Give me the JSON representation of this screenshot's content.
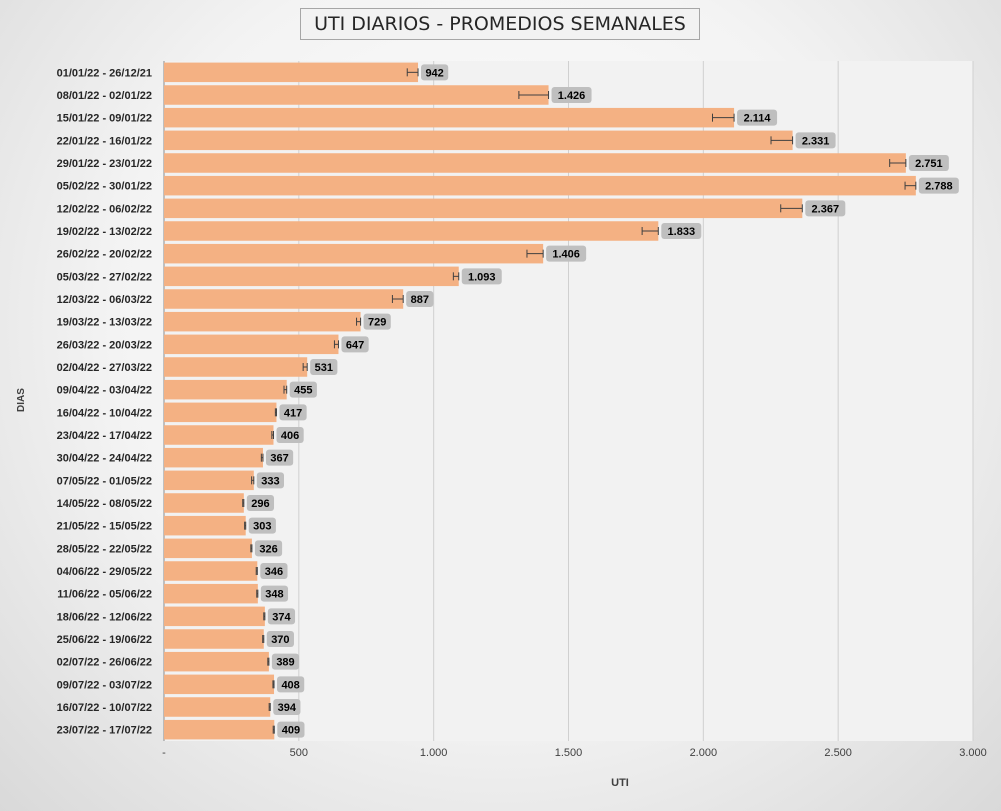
{
  "chart_data": {
    "type": "bar",
    "orientation": "horizontal",
    "title": "UTI DIARIOS - PROMEDIOS SEMANALES",
    "xlabel": "UTI",
    "ylabel": "DIAS",
    "xlim": [
      0,
      3000
    ],
    "x_ticks": [
      0,
      500,
      1000,
      1500,
      2000,
      2500,
      3000
    ],
    "x_tick_labels": [
      "-",
      "500",
      "1.000",
      "1.500",
      "2.000",
      "2.500",
      "3.000"
    ],
    "grid": "vertical",
    "legend": "none",
    "bar_color": "#f4b183",
    "label_bg_color": "#bfbfbf",
    "error_bars": true,
    "categories": [
      "01/01/22 - 26/12/21",
      "08/01/22 - 02/01/22",
      "15/01/22 - 09/01/22",
      "22/01/22 - 16/01/22",
      "29/01/22 - 23/01/22",
      "05/02/22 - 30/01/22",
      "12/02/22 - 06/02/22",
      "19/02/22 - 13/02/22",
      "26/02/22 - 20/02/22",
      "05/03/22 - 27/02/22",
      "12/03/22 - 06/03/22",
      "19/03/22 - 13/03/22",
      "26/03/22 - 20/03/22",
      "02/04/22 - 27/03/22",
      "09/04/22 - 03/04/22",
      "16/04/22 - 10/04/22",
      "23/04/22 - 17/04/22",
      "30/04/22 - 24/04/22",
      "07/05/22 - 01/05/22",
      "14/05/22 - 08/05/22",
      "21/05/22 - 15/05/22",
      "28/05/22 - 22/05/22",
      "04/06/22 - 29/05/22",
      "11/06/22 - 05/06/22",
      "18/06/22 - 12/06/22",
      "25/06/22 - 19/06/22",
      "02/07/22 - 26/06/22",
      "09/07/22 - 03/07/22",
      "16/07/22 - 10/07/22",
      "23/07/22 - 17/07/22"
    ],
    "values": [
      942,
      1426,
      2114,
      2331,
      2751,
      2788,
      2367,
      1833,
      1406,
      1093,
      887,
      729,
      647,
      531,
      455,
      417,
      406,
      367,
      333,
      296,
      303,
      326,
      346,
      348,
      374,
      370,
      389,
      408,
      394,
      409
    ],
    "value_labels": [
      "942",
      "1.426",
      "2.114",
      "2.331",
      "2.751",
      "2.788",
      "2.367",
      "1.833",
      "1.406",
      "1.093",
      "887",
      "729",
      "647",
      "531",
      "455",
      "417",
      "406",
      "367",
      "333",
      "296",
      "303",
      "326",
      "346",
      "348",
      "374",
      "370",
      "389",
      "408",
      "394",
      "409"
    ],
    "error_low": [
      40,
      110,
      80,
      80,
      60,
      40,
      80,
      60,
      60,
      20,
      40,
      15,
      15,
      15,
      10,
      4,
      6,
      6,
      8,
      4,
      4,
      4,
      4,
      4,
      4,
      4,
      4,
      4,
      4,
      4
    ],
    "error_high": [
      0,
      0,
      0,
      0,
      0,
      0,
      0,
      0,
      0,
      0,
      0,
      0,
      0,
      0,
      0,
      0,
      0,
      0,
      0,
      0,
      0,
      0,
      0,
      0,
      0,
      0,
      0,
      0,
      0,
      0
    ]
  }
}
